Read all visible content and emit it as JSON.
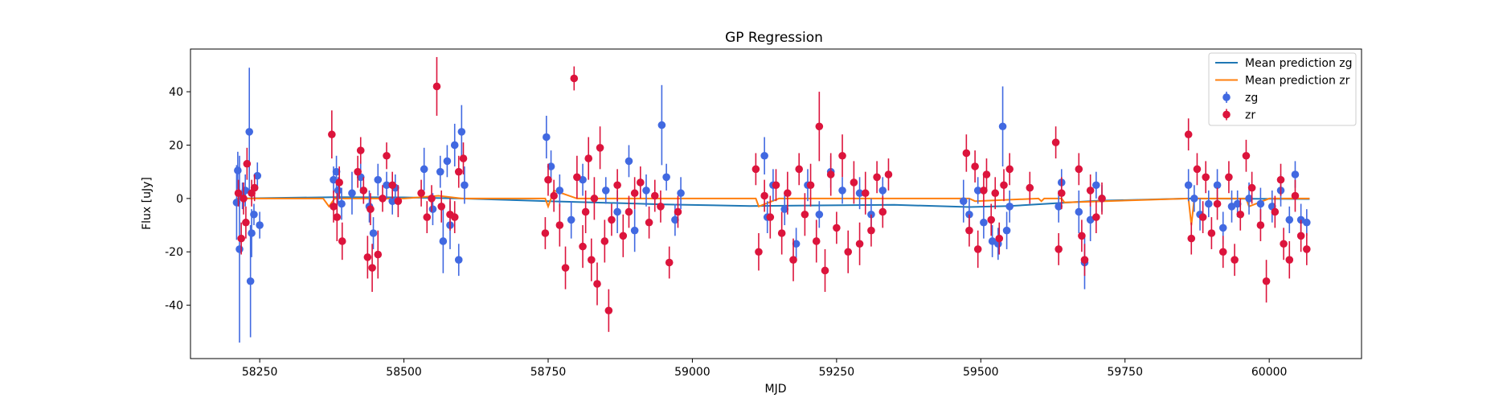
{
  "chart_data": {
    "type": "scatter",
    "title": "GP Regression",
    "xlabel": "MJD",
    "ylabel": "Flux [uJy]",
    "xlim": [
      58130,
      60160
    ],
    "ylim": [
      -60,
      56
    ],
    "xticks": [
      58250,
      58500,
      58750,
      59000,
      59250,
      59500,
      59750,
      60000
    ],
    "yticks": [
      -40,
      -20,
      0,
      20,
      40
    ],
    "grid": false,
    "legend_position": "top-right",
    "series": [
      {
        "name": "Mean prediction zg",
        "kind": "line",
        "color": "#1f77b4",
        "x": [
          58210,
          58380,
          58500,
          58600,
          58750,
          58950,
          59100,
          59350,
          59480,
          59550,
          59700,
          59860,
          60070
        ],
        "y": [
          0.0,
          0.5,
          0.4,
          0.0,
          -1.0,
          -2.2,
          -2.8,
          -2.4,
          -3.2,
          -2.8,
          -0.9,
          0.0,
          -0.2
        ]
      },
      {
        "name": "Mean prediction zr",
        "kind": "line",
        "color": "#ff7f0e",
        "x": [
          58210,
          58290,
          58360,
          58370,
          58380,
          58480,
          58500,
          58560,
          58600,
          58745,
          58750,
          58760,
          58800,
          58850,
          58950,
          59110,
          59115,
          59150,
          59250,
          59300,
          59480,
          59490,
          59600,
          59605,
          59610,
          59640,
          59645,
          59860,
          59865,
          59870,
          59900,
          59960,
          59965,
          60000,
          60070
        ],
        "y": [
          0.0,
          0.0,
          0.0,
          -3.0,
          0.0,
          0.0,
          0.0,
          1.0,
          0.0,
          0.0,
          -3.0,
          3.0,
          0.0,
          0.0,
          0.0,
          0.0,
          -3.0,
          0.0,
          0.0,
          0.0,
          0.0,
          -1.0,
          0.0,
          -1.0,
          0.0,
          0.0,
          -1.5,
          0.0,
          -10.0,
          0.0,
          0.0,
          0.0,
          -3.0,
          0.0,
          0.0
        ]
      },
      {
        "name": "zg",
        "kind": "errorbar",
        "color": "#4169e1",
        "points": [
          [
            58210,
            -1.5,
            14
          ],
          [
            58212,
            10.5,
            7
          ],
          [
            58215,
            -19,
            35
          ],
          [
            58220,
            1,
            5
          ],
          [
            58225,
            3,
            6
          ],
          [
            58232,
            25,
            24
          ],
          [
            58234,
            -31,
            21
          ],
          [
            58236,
            -13,
            9
          ],
          [
            58240,
            -6,
            4
          ],
          [
            58246,
            8.5,
            5
          ],
          [
            58250,
            -10,
            5
          ],
          [
            58378,
            7,
            5
          ],
          [
            58383,
            10,
            6
          ],
          [
            58386,
            3,
            5
          ],
          [
            58392,
            -2,
            6
          ],
          [
            58410,
            2,
            8
          ],
          [
            58425,
            8,
            6
          ],
          [
            58440,
            -3,
            6
          ],
          [
            58447,
            -13,
            6
          ],
          [
            58455,
            7,
            6
          ],
          [
            58470,
            5,
            5
          ],
          [
            58480,
            -1,
            5
          ],
          [
            58485,
            4,
            5
          ],
          [
            58535,
            11,
            8
          ],
          [
            58550,
            -4,
            6
          ],
          [
            58563,
            10,
            6
          ],
          [
            58568,
            -16,
            12
          ],
          [
            58575,
            14,
            6
          ],
          [
            58580,
            -10,
            9
          ],
          [
            58588,
            20,
            8
          ],
          [
            58595,
            -23,
            6
          ],
          [
            58600,
            25,
            10
          ],
          [
            58605,
            5,
            7
          ],
          [
            58747,
            23,
            8
          ],
          [
            58755,
            12,
            6
          ],
          [
            58770,
            3,
            6
          ],
          [
            58790,
            -8,
            7
          ],
          [
            58810,
            7,
            6
          ],
          [
            58850,
            3,
            5
          ],
          [
            58870,
            -5,
            8
          ],
          [
            58890,
            14,
            6
          ],
          [
            58900,
            -12,
            8
          ],
          [
            58920,
            3,
            6
          ],
          [
            58947,
            27.5,
            15
          ],
          [
            58955,
            8,
            5
          ],
          [
            58970,
            -8,
            6
          ],
          [
            58980,
            2,
            6
          ],
          [
            59125,
            16,
            7
          ],
          [
            59130,
            -7,
            6
          ],
          [
            59140,
            5,
            6
          ],
          [
            59160,
            -4,
            6
          ],
          [
            59180,
            -17,
            6
          ],
          [
            59200,
            5,
            6
          ],
          [
            59220,
            -6,
            5
          ],
          [
            59240,
            10,
            6
          ],
          [
            59260,
            3,
            5
          ],
          [
            59290,
            2,
            6
          ],
          [
            59310,
            -6,
            6
          ],
          [
            59330,
            3,
            5
          ],
          [
            59470,
            -1,
            8
          ],
          [
            59480,
            -6,
            6
          ],
          [
            59495,
            3,
            5
          ],
          [
            59505,
            -9,
            6
          ],
          [
            59520,
            -16,
            6
          ],
          [
            59530,
            -17,
            6
          ],
          [
            59538,
            27,
            15
          ],
          [
            59545,
            -12,
            7
          ],
          [
            59550,
            -3,
            6
          ],
          [
            59635,
            -3,
            6
          ],
          [
            59640,
            6,
            5
          ],
          [
            59670,
            -5,
            8
          ],
          [
            59680,
            -24,
            10
          ],
          [
            59690,
            -8,
            8
          ],
          [
            59700,
            5,
            5
          ],
          [
            59710,
            0,
            5
          ],
          [
            59860,
            5,
            6
          ],
          [
            59870,
            0,
            5
          ],
          [
            59880,
            -6,
            6
          ],
          [
            59895,
            -2,
            5
          ],
          [
            59910,
            5,
            6
          ],
          [
            59920,
            -11,
            6
          ],
          [
            59935,
            -3,
            6
          ],
          [
            59945,
            -2,
            5
          ],
          [
            59965,
            0,
            6
          ],
          [
            59985,
            -2,
            6
          ],
          [
            60005,
            -3,
            6
          ],
          [
            60020,
            3,
            6
          ],
          [
            60035,
            -8,
            5
          ],
          [
            60045,
            9,
            5
          ],
          [
            60055,
            -8,
            6
          ],
          [
            60065,
            -9,
            5
          ]
        ]
      },
      {
        "name": "zr",
        "kind": "errorbar",
        "color": "#dc143c",
        "points": [
          [
            58213,
            2,
            5
          ],
          [
            58218,
            -15,
            6
          ],
          [
            58222,
            0,
            6
          ],
          [
            58226,
            -9,
            6
          ],
          [
            58228,
            13,
            6
          ],
          [
            58236,
            2,
            5
          ],
          [
            58241,
            4,
            5
          ],
          [
            58375,
            24,
            9
          ],
          [
            58378,
            -3,
            6
          ],
          [
            58384,
            -7,
            9
          ],
          [
            58388,
            6,
            6
          ],
          [
            58393,
            -16,
            7
          ],
          [
            58420,
            10,
            6
          ],
          [
            58425,
            18,
            5
          ],
          [
            58430,
            3,
            5
          ],
          [
            58437,
            -22,
            8
          ],
          [
            58442,
            -4,
            6
          ],
          [
            58445,
            -26,
            9
          ],
          [
            58455,
            -21,
            9
          ],
          [
            58463,
            0,
            5
          ],
          [
            58470,
            16,
            5
          ],
          [
            58480,
            5,
            5
          ],
          [
            58490,
            -1,
            6
          ],
          [
            58530,
            2,
            5
          ],
          [
            58540,
            -7,
            6
          ],
          [
            58548,
            0,
            5
          ],
          [
            58557,
            42,
            11
          ],
          [
            58565,
            -3,
            6
          ],
          [
            58580,
            -6,
            6
          ],
          [
            58588,
            -7,
            6
          ],
          [
            58595,
            10,
            6
          ],
          [
            58603,
            15,
            6
          ],
          [
            58745,
            -13,
            6
          ],
          [
            58750,
            7,
            6
          ],
          [
            58760,
            1,
            6
          ],
          [
            58770,
            -10,
            8
          ],
          [
            58780,
            -26,
            8
          ],
          [
            58795,
            45,
            4.5
          ],
          [
            58800,
            8,
            8
          ],
          [
            58810,
            -18,
            8
          ],
          [
            58815,
            -5,
            8
          ],
          [
            58820,
            15,
            8
          ],
          [
            58825,
            -23,
            8
          ],
          [
            58830,
            0,
            8
          ],
          [
            58835,
            -32,
            8
          ],
          [
            58840,
            19,
            8
          ],
          [
            58848,
            -16,
            8
          ],
          [
            58855,
            -42,
            8
          ],
          [
            58860,
            -8,
            6
          ],
          [
            58870,
            5,
            6
          ],
          [
            58880,
            -14,
            8
          ],
          [
            58890,
            -5,
            6
          ],
          [
            58900,
            2,
            6
          ],
          [
            58910,
            6,
            6
          ],
          [
            58925,
            -9,
            6
          ],
          [
            58935,
            1,
            6
          ],
          [
            58945,
            -3,
            6
          ],
          [
            58960,
            -24,
            6
          ],
          [
            58975,
            -5,
            6
          ],
          [
            59110,
            11,
            6
          ],
          [
            59115,
            -20,
            7
          ],
          [
            59125,
            1,
            6
          ],
          [
            59135,
            -7,
            8
          ],
          [
            59145,
            5,
            6
          ],
          [
            59155,
            -13,
            8
          ],
          [
            59165,
            2,
            8
          ],
          [
            59175,
            -23,
            8
          ],
          [
            59185,
            11,
            6
          ],
          [
            59195,
            -6,
            8
          ],
          [
            59205,
            5,
            8
          ],
          [
            59215,
            -16,
            8
          ],
          [
            59220,
            27,
            13
          ],
          [
            59230,
            -27,
            8
          ],
          [
            59240,
            9,
            8
          ],
          [
            59250,
            -11,
            6
          ],
          [
            59260,
            16,
            8
          ],
          [
            59270,
            -20,
            8
          ],
          [
            59280,
            6,
            8
          ],
          [
            59290,
            -17,
            8
          ],
          [
            59300,
            2,
            8
          ],
          [
            59310,
            -12,
            6
          ],
          [
            59320,
            8,
            6
          ],
          [
            59330,
            -5,
            6
          ],
          [
            59340,
            9,
            6
          ],
          [
            59475,
            17,
            7
          ],
          [
            59480,
            -12,
            6
          ],
          [
            59490,
            12,
            6
          ],
          [
            59495,
            -19,
            7
          ],
          [
            59505,
            3,
            6
          ],
          [
            59510,
            9,
            6
          ],
          [
            59518,
            -8,
            6
          ],
          [
            59525,
            2,
            6
          ],
          [
            59532,
            -15,
            6
          ],
          [
            59540,
            5,
            6
          ],
          [
            59550,
            11,
            6
          ],
          [
            59585,
            4,
            6
          ],
          [
            59630,
            21,
            6
          ],
          [
            59635,
            -19,
            6
          ],
          [
            59640,
            2,
            6
          ],
          [
            59670,
            11,
            6
          ],
          [
            59675,
            -14,
            6
          ],
          [
            59680,
            -23,
            6
          ],
          [
            59690,
            3,
            6
          ],
          [
            59700,
            -7,
            6
          ],
          [
            59710,
            0,
            6
          ],
          [
            59860,
            24,
            6
          ],
          [
            59865,
            -15,
            6
          ],
          [
            59875,
            11,
            6
          ],
          [
            59885,
            -7,
            6
          ],
          [
            59890,
            8,
            6
          ],
          [
            59900,
            -13,
            6
          ],
          [
            59910,
            -2,
            6
          ],
          [
            59920,
            -20,
            6
          ],
          [
            59930,
            8,
            6
          ],
          [
            59940,
            -23,
            6
          ],
          [
            59950,
            -6,
            6
          ],
          [
            59960,
            16,
            6
          ],
          [
            59970,
            4,
            6
          ],
          [
            59985,
            -10,
            6
          ],
          [
            59995,
            -31,
            8
          ],
          [
            60010,
            -5,
            6
          ],
          [
            60020,
            7,
            6
          ],
          [
            60025,
            -17,
            6
          ],
          [
            60035,
            -23,
            7
          ],
          [
            60045,
            1,
            6
          ],
          [
            60055,
            -14,
            6
          ],
          [
            60065,
            -19,
            6
          ]
        ]
      }
    ]
  }
}
